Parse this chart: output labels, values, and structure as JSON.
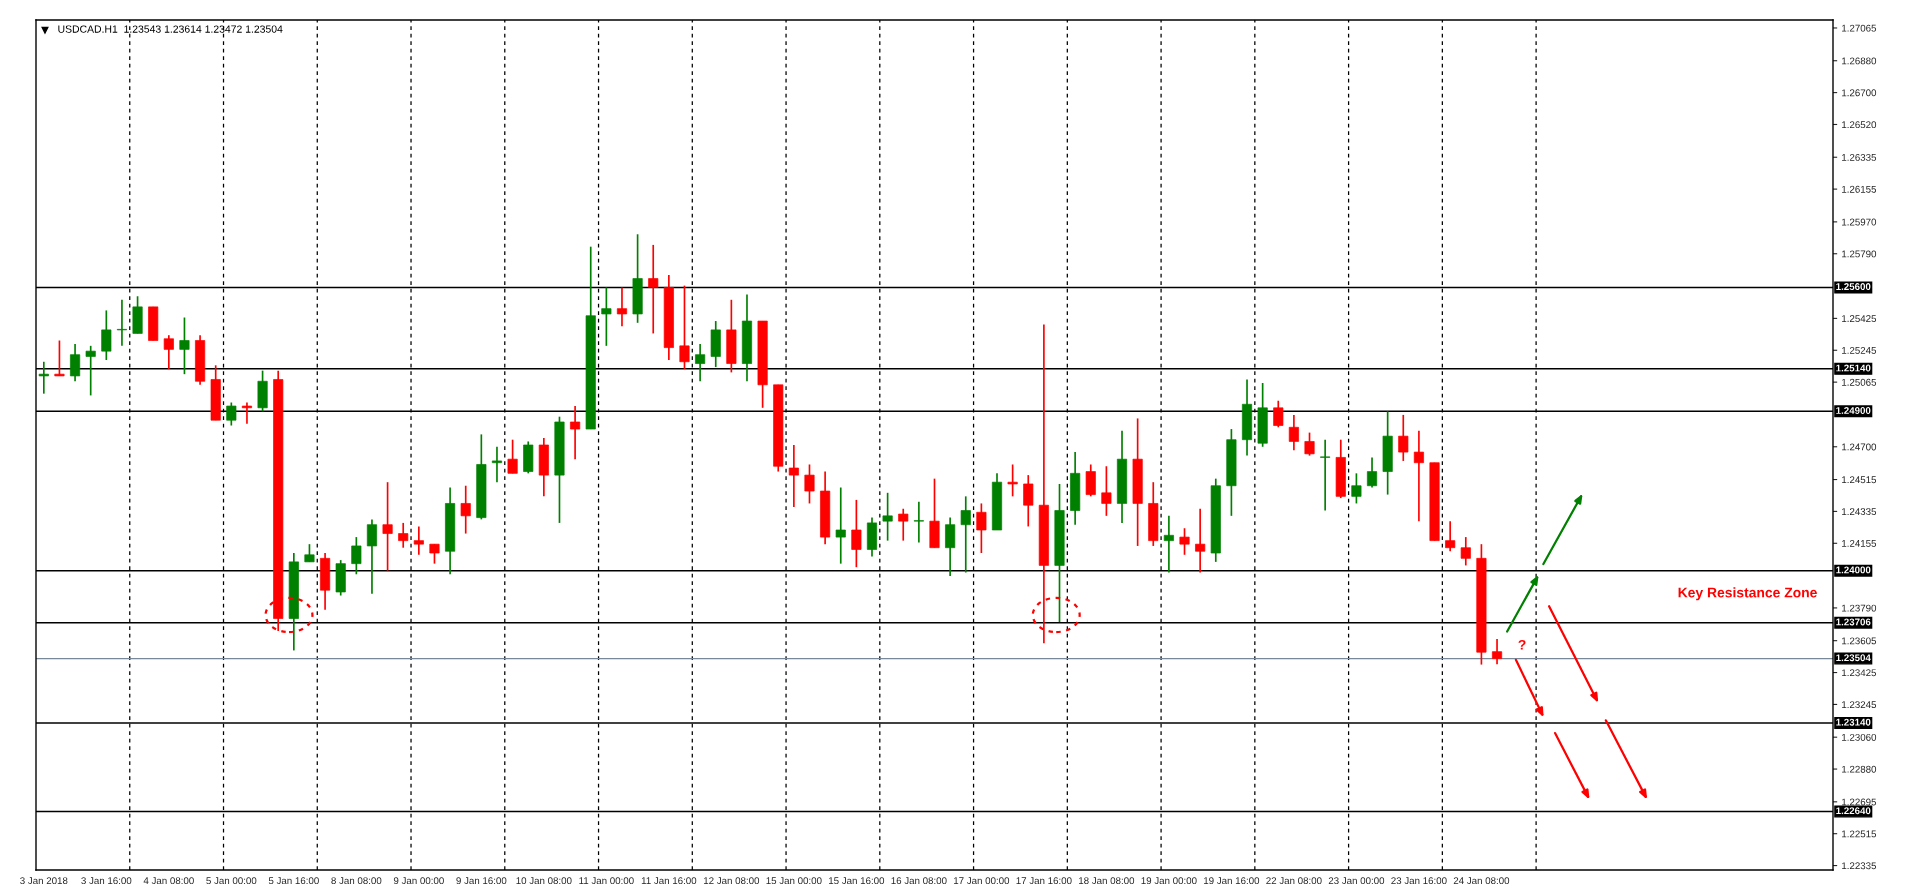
{
  "chart_data": {
    "type": "candlestick",
    "title": "USDCAD.H1  1.23543 1.23614 1.23472 1.23504",
    "categories": [
      "3 Jan 2018",
      null,
      null,
      null,
      "3 Jan 16:00",
      null,
      null,
      null,
      "4 Jan 08:00",
      null,
      null,
      null,
      "5 Jan 00:00",
      null,
      null,
      null,
      "5 Jan 16:00",
      null,
      null,
      null,
      "8 Jan 08:00",
      null,
      null,
      null,
      "9 Jan 00:00",
      null,
      null,
      null,
      "9 Jan 16:00",
      null,
      null,
      null,
      "10 Jan 08:00",
      null,
      null,
      null,
      "11 Jan 00:00",
      null,
      null,
      null,
      "11 Jan 16:00",
      null,
      null,
      null,
      "12 Jan 08:00",
      null,
      null,
      null,
      "15 Jan 00:00",
      null,
      null,
      null,
      "15 Jan 16:00",
      null,
      null,
      null,
      "16 Jan 08:00",
      null,
      null,
      null,
      "17 Jan 00:00",
      null,
      null,
      null,
      "17 Jan 16:00",
      null,
      null,
      null,
      "18 Jan 08:00",
      null,
      null,
      null,
      "19 Jan 00:00",
      null,
      null,
      null,
      "19 Jan 16:00",
      null,
      null,
      null,
      "22 Jan 08:00",
      null,
      null,
      null,
      "23 Jan 00:00",
      null,
      null,
      null,
      "23 Jan 16:00",
      null,
      null,
      null,
      "24 Jan 08:00",
      null,
      null,
      null,
      null,
      null,
      null,
      null,
      null,
      null,
      null,
      null,
      null,
      null,
      null,
      null,
      null,
      null,
      null,
      null,
      null,
      null,
      null
    ],
    "ohlc": [
      [
        1.251,
        1.2518,
        1.25,
        1.2511
      ],
      [
        1.2511,
        1.253,
        1.251,
        1.251
      ],
      [
        1.251,
        1.2528,
        1.2507,
        1.2522
      ],
      [
        1.2521,
        1.2527,
        1.2499,
        1.2524
      ],
      [
        1.2524,
        1.2547,
        1.2519,
        1.2536
      ],
      [
        1.2536,
        1.2553,
        1.2527,
        1.2536
      ],
      [
        1.2534,
        1.2555,
        1.2534,
        1.2549
      ],
      [
        1.2549,
        1.2549,
        1.253,
        1.253
      ],
      [
        1.2531,
        1.2533,
        1.2514,
        1.2525
      ],
      [
        1.2525,
        1.2543,
        1.2511,
        1.253
      ],
      [
        1.253,
        1.2533,
        1.2505,
        1.2507
      ],
      [
        1.2508,
        1.2516,
        1.2485,
        1.2485
      ],
      [
        1.2485,
        1.2495,
        1.2482,
        1.2493
      ],
      [
        1.2493,
        1.2495,
        1.2483,
        1.2492
      ],
      [
        1.2492,
        1.2513,
        1.249,
        1.2507
      ],
      [
        1.2508,
        1.2513,
        1.2366,
        1.2373
      ],
      [
        1.2373,
        1.241,
        1.2355,
        1.2405
      ],
      [
        1.2405,
        1.2415,
        1.2405,
        1.2409
      ],
      [
        1.2407,
        1.241,
        1.2378,
        1.2389
      ],
      [
        1.2388,
        1.2406,
        1.2386,
        1.2404
      ],
      [
        1.2404,
        1.2419,
        1.2398,
        1.2414
      ],
      [
        1.2414,
        1.2429,
        1.2387,
        1.2426
      ],
      [
        1.2426,
        1.245,
        1.24,
        1.2421
      ],
      [
        1.2421,
        1.2427,
        1.2413,
        1.2417
      ],
      [
        1.2417,
        1.2425,
        1.2409,
        1.2415
      ],
      [
        1.2415,
        1.2415,
        1.2404,
        1.241
      ],
      [
        1.2411,
        1.2447,
        1.2398,
        1.2438
      ],
      [
        1.2438,
        1.2448,
        1.2421,
        1.2431
      ],
      [
        1.243,
        1.2477,
        1.2429,
        1.246
      ],
      [
        1.2461,
        1.247,
        1.245,
        1.2462
      ],
      [
        1.2463,
        1.2474,
        1.2455,
        1.2455
      ],
      [
        1.2456,
        1.2473,
        1.2455,
        1.2471
      ],
      [
        1.2471,
        1.2475,
        1.2442,
        1.2454
      ],
      [
        1.2454,
        1.2487,
        1.2427,
        1.2484
      ],
      [
        1.2484,
        1.2493,
        1.2463,
        1.248
      ],
      [
        1.248,
        1.2583,
        1.248,
        1.2544
      ],
      [
        1.2545,
        1.256,
        1.2527,
        1.2548
      ],
      [
        1.2548,
        1.256,
        1.2538,
        1.2545
      ],
      [
        1.2545,
        1.259,
        1.254,
        1.2565
      ],
      [
        1.2565,
        1.2584,
        1.2534,
        1.256
      ],
      [
        1.256,
        1.2567,
        1.2519,
        1.2526
      ],
      [
        1.2527,
        1.2561,
        1.2514,
        1.2518
      ],
      [
        1.2517,
        1.2528,
        1.2507,
        1.2522
      ],
      [
        1.2521,
        1.2541,
        1.2515,
        1.2536
      ],
      [
        1.2536,
        1.2553,
        1.2512,
        1.2517
      ],
      [
        1.2517,
        1.2556,
        1.2507,
        1.2541
      ],
      [
        1.2541,
        1.2541,
        1.2492,
        1.2505
      ],
      [
        1.2505,
        1.2505,
        1.2456,
        1.2459
      ],
      [
        1.2458,
        1.2471,
        1.2436,
        1.2454
      ],
      [
        1.2454,
        1.246,
        1.2438,
        1.2445
      ],
      [
        1.2445,
        1.2456,
        1.2415,
        1.2419
      ],
      [
        1.2419,
        1.2447,
        1.2404,
        1.2423
      ],
      [
        1.2423,
        1.244,
        1.2402,
        1.2412
      ],
      [
        1.2412,
        1.243,
        1.2408,
        1.2427
      ],
      [
        1.2428,
        1.2444,
        1.2417,
        1.2431
      ],
      [
        1.2432,
        1.2435,
        1.2417,
        1.2428
      ],
      [
        1.2428,
        1.2439,
        1.2416,
        1.2428
      ],
      [
        1.2428,
        1.2452,
        1.2413,
        1.2413
      ],
      [
        1.2413,
        1.243,
        1.2397,
        1.2426
      ],
      [
        1.2426,
        1.2442,
        1.2399,
        1.2434
      ],
      [
        1.2433,
        1.2438,
        1.241,
        1.2423
      ],
      [
        1.2423,
        1.2455,
        1.2423,
        1.245
      ],
      [
        1.245,
        1.246,
        1.2442,
        1.2449
      ],
      [
        1.2449,
        1.2454,
        1.2425,
        1.2437
      ],
      [
        1.2437,
        1.2539,
        1.2359,
        1.2403
      ],
      [
        1.2403,
        1.2449,
        1.2371,
        1.2434
      ],
      [
        1.2434,
        1.2467,
        1.2426,
        1.2455
      ],
      [
        1.2456,
        1.246,
        1.2442,
        1.2443
      ],
      [
        1.2444,
        1.2459,
        1.2431,
        1.2438
      ],
      [
        1.2438,
        1.2479,
        1.2427,
        1.2463
      ],
      [
        1.2463,
        1.2486,
        1.2414,
        1.2438
      ],
      [
        1.2438,
        1.245,
        1.2414,
        1.2417
      ],
      [
        1.2417,
        1.2431,
        1.2399,
        1.242
      ],
      [
        1.2419,
        1.2424,
        1.2409,
        1.2415
      ],
      [
        1.2415,
        1.2435,
        1.2399,
        1.2411
      ],
      [
        1.241,
        1.2452,
        1.2405,
        1.2448
      ],
      [
        1.2448,
        1.248,
        1.2431,
        1.2474
      ],
      [
        1.2474,
        1.2508,
        1.2465,
        1.2494
      ],
      [
        1.2472,
        1.2506,
        1.247,
        1.2492
      ],
      [
        1.2492,
        1.2496,
        1.2481,
        1.2482
      ],
      [
        1.2481,
        1.2488,
        1.2468,
        1.2473
      ],
      [
        1.2473,
        1.2478,
        1.2465,
        1.2466
      ],
      [
        1.2464,
        1.2474,
        1.2434,
        1.2464
      ],
      [
        1.2464,
        1.2474,
        1.2441,
        1.2442
      ],
      [
        1.2442,
        1.2455,
        1.2438,
        1.2448
      ],
      [
        1.2448,
        1.2464,
        1.2447,
        1.2456
      ],
      [
        1.2456,
        1.249,
        1.2443,
        1.2476
      ],
      [
        1.2476,
        1.2488,
        1.2462,
        1.2467
      ],
      [
        1.2467,
        1.2479,
        1.2428,
        1.2461
      ],
      [
        1.2461,
        1.2461,
        1.2417,
        1.2417
      ],
      [
        1.2417,
        1.2428,
        1.2411,
        1.2413
      ],
      [
        1.2413,
        1.2419,
        1.2403,
        1.2407
      ],
      [
        1.2407,
        1.2415,
        1.2347,
        1.2354
      ],
      [
        1.23543,
        1.23614,
        1.23472,
        1.23504
      ],
      null,
      null,
      null,
      null,
      null,
      null,
      null,
      null,
      null,
      null,
      null,
      null,
      null,
      null,
      null,
      null,
      null,
      null,
      null,
      null,
      null
    ],
    "colors": [
      "#008000",
      "#ff0000",
      "#008000",
      "#008000",
      "#008000",
      "#008000",
      "#008000",
      "#ff0000",
      "#ff0000",
      "#008000",
      "#ff0000",
      "#ff0000",
      "#008000",
      "#ff0000",
      "#008000",
      "#ff0000",
      "#008000",
      "#008000",
      "#ff0000",
      "#008000",
      "#008000",
      "#008000",
      "#ff0000",
      "#ff0000",
      "#ff0000",
      "#ff0000",
      "#008000",
      "#ff0000",
      "#008000",
      "#008000",
      "#ff0000",
      "#008000",
      "#ff0000",
      "#008000",
      "#ff0000",
      "#008000",
      "#008000",
      "#ff0000",
      "#008000",
      "#ff0000",
      "#ff0000",
      "#ff0000",
      "#008000",
      "#008000",
      "#ff0000",
      "#008000",
      "#ff0000",
      "#ff0000",
      "#ff0000",
      "#ff0000",
      "#ff0000",
      "#008000",
      "#ff0000",
      "#008000",
      "#008000",
      "#ff0000",
      "#008000",
      "#ff0000",
      "#008000",
      "#008000",
      "#ff0000",
      "#008000",
      "#ff0000",
      "#ff0000",
      "#ff0000",
      "#008000",
      "#008000",
      "#ff0000",
      "#ff0000",
      "#008000",
      "#ff0000",
      "#ff0000",
      "#008000",
      "#ff0000",
      "#ff0000",
      "#008000",
      "#008000",
      "#008000",
      "#008000",
      "#ff0000",
      "#ff0000",
      "#ff0000",
      "#008000",
      "#ff0000",
      "#008000",
      "#008000",
      "#008000",
      "#ff0000",
      "#ff0000",
      "#ff0000",
      "#ff0000",
      "#ff0000",
      "#ff0000",
      "#ff0000",
      null,
      null,
      null,
      null,
      null,
      null,
      null,
      null,
      null,
      null,
      null,
      null,
      null,
      null,
      null,
      null,
      null,
      null,
      null,
      null,
      null
    ],
    "ylim": [
      1.2231,
      1.2711
    ],
    "yticks": [
      1.27065,
      {
        "value": 1.2688,
        "label": "1.26880"
      },
      {
        "value": 1.267,
        "label": "1.26700"
      },
      {
        "value": 1.2652,
        "label": "1.26520"
      },
      1.26335,
      1.26155,
      {
        "value": 1.2597,
        "label": "1.25970"
      },
      {
        "value": 1.2579,
        "label": "1.25790"
      },
      1.25425,
      1.25245,
      1.25065,
      {
        "value": 1.247,
        "label": "1.24700"
      },
      1.24515,
      1.24335,
      1.24155,
      {
        "value": 1.2379,
        "label": "1.23790"
      },
      1.23605,
      1.23425,
      1.23245,
      {
        "value": 1.2306,
        "label": "1.23060"
      },
      {
        "value": 1.2288,
        "label": "1.22880"
      },
      1.22695,
      1.22515,
      1.22335
    ],
    "ref_lines": [
      {
        "axis": "y",
        "value": 1.256,
        "label": "1.25600",
        "color": "#000000"
      },
      {
        "axis": "y",
        "value": 1.2514,
        "label": "1.25140",
        "color": "#000000"
      },
      {
        "axis": "y",
        "value": 1.249,
        "label": "1.24900",
        "color": "#000000"
      },
      {
        "axis": "y",
        "value": 1.24,
        "label": "1.24000",
        "color": "#000000"
      },
      {
        "axis": "y",
        "value": 1.23706,
        "label": "1.23706",
        "color": "#000000"
      },
      {
        "axis": "y",
        "value": 1.23504,
        "label": "1.23504",
        "color": "#778899"
      },
      {
        "axis": "y",
        "value": 1.2314,
        "label": "1.23140",
        "color": "#000000"
      },
      {
        "axis": "y",
        "value": 1.2264,
        "label": "1.22640",
        "color": "#000000"
      }
    ],
    "annotations": [
      "Key Resistance Zone",
      "?"
    ],
    "grid": "x"
  }
}
